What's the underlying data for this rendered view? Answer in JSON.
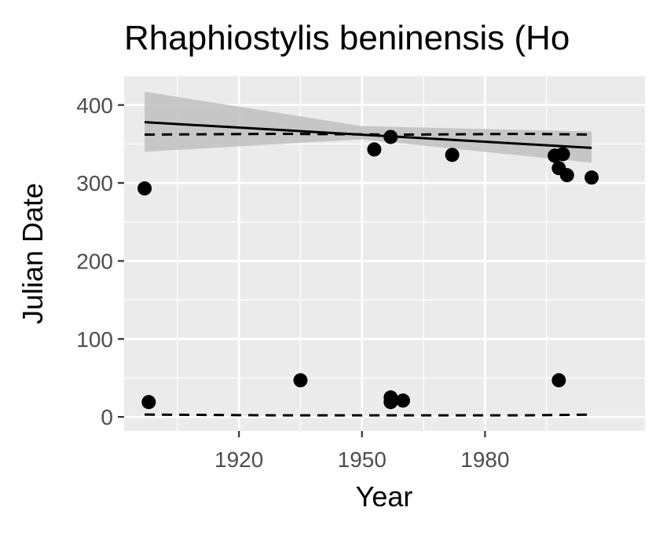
{
  "chart_data": {
    "type": "scatter",
    "title": "Rhaphiostylis beninensis (Ho",
    "xlabel": "Year",
    "ylabel": "Julian Date",
    "xlim": [
      1892,
      2019
    ],
    "ylim": [
      -18,
      437
    ],
    "x_ticks": [
      1920,
      1950,
      1980
    ],
    "y_ticks": [
      0,
      100,
      200,
      300,
      400
    ],
    "x_tick_labels": [
      "1920",
      "1950",
      "1980"
    ],
    "y_tick_labels": [
      "0",
      "100",
      "200",
      "300",
      "400"
    ],
    "grid": true,
    "legend": "none",
    "colors": {
      "panel_background": "#ebebeb",
      "grid_major": "#ffffff",
      "points": "#000000",
      "confidence_band": "#bfbfbf",
      "tick_label": "#4d4d4d"
    },
    "points": [
      {
        "x": 1897,
        "y": 293
      },
      {
        "x": 1898,
        "y": 19
      },
      {
        "x": 1935,
        "y": 47
      },
      {
        "x": 1953,
        "y": 343
      },
      {
        "x": 1957,
        "y": 359
      },
      {
        "x": 1957,
        "y": 25
      },
      {
        "x": 1957,
        "y": 19
      },
      {
        "x": 1960,
        "y": 21
      },
      {
        "x": 1972,
        "y": 336
      },
      {
        "x": 1997,
        "y": 335
      },
      {
        "x": 1998,
        "y": 319
      },
      {
        "x": 1998,
        "y": 47
      },
      {
        "x": 1999,
        "y": 337
      },
      {
        "x": 2000,
        "y": 310
      },
      {
        "x": 2006,
        "y": 307
      }
    ],
    "trend_line": {
      "x": [
        1897,
        2006
      ],
      "y": [
        378,
        345
      ]
    },
    "confidence_band": {
      "x": [
        1897,
        1950,
        2006
      ],
      "upper": [
        417,
        373,
        366
      ],
      "lower": [
        340,
        356,
        326
      ]
    },
    "dashed_lines": [
      {
        "x": [
          1897,
          1930,
          1960,
          1990,
          2006
        ],
        "y": [
          362,
          363,
          362,
          363,
          362
        ]
      },
      {
        "x": [
          1897,
          1930,
          1960,
          1990,
          2006
        ],
        "y": [
          3,
          2,
          2,
          2,
          3
        ]
      }
    ]
  }
}
